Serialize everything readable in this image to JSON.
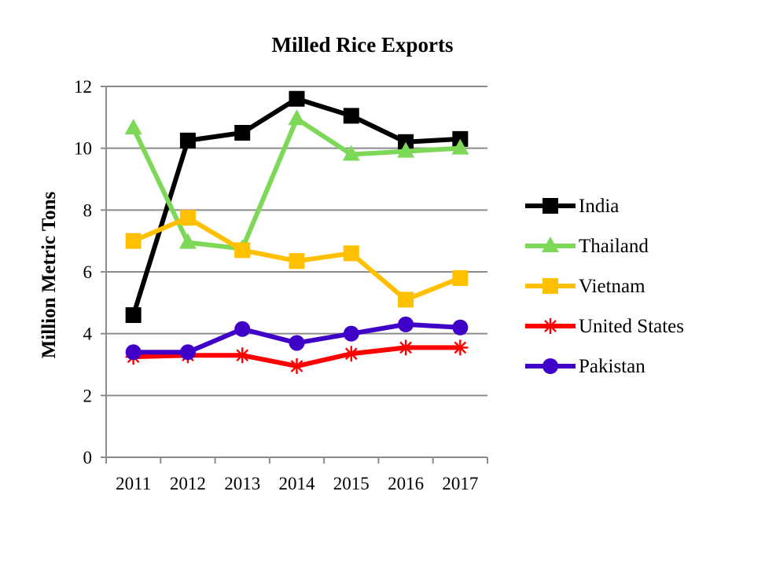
{
  "chart_data": {
    "type": "line",
    "title": "Milled Rice Exports",
    "xlabel": "",
    "ylabel": "Million Metric Tons",
    "categories": [
      "2011",
      "2012",
      "2013",
      "2014",
      "2015",
      "2016",
      "2017"
    ],
    "ylim": [
      0,
      12
    ],
    "yticks": [
      "0",
      "2",
      "4",
      "6",
      "8",
      "10",
      "12"
    ],
    "grid": "horizontal",
    "legend_position": "right",
    "series": [
      {
        "name": "India",
        "color": "#000000",
        "marker": "square",
        "values": [
          4.6,
          10.25,
          10.5,
          11.6,
          11.05,
          10.2,
          10.3
        ]
      },
      {
        "name": "Thailand",
        "color": "#7dd858",
        "marker": "triangle",
        "values": [
          10.65,
          6.95,
          6.75,
          10.95,
          9.8,
          9.9,
          10.0
        ]
      },
      {
        "name": "Vietnam",
        "color": "#ffc000",
        "marker": "square",
        "values": [
          7.0,
          7.75,
          6.7,
          6.35,
          6.6,
          5.1,
          5.8
        ]
      },
      {
        "name": "United States",
        "color": "#ff0000",
        "marker": "asterisk",
        "values": [
          3.25,
          3.3,
          3.3,
          2.95,
          3.35,
          3.55,
          3.55
        ]
      },
      {
        "name": "Pakistan",
        "color": "#3f00c8",
        "marker": "circle",
        "values": [
          3.4,
          3.4,
          4.15,
          3.7,
          4.0,
          4.3,
          4.2
        ]
      }
    ]
  }
}
